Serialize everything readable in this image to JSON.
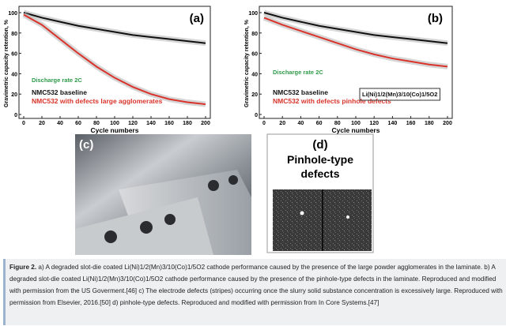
{
  "chart_data": [
    {
      "type": "line",
      "panel_label": "(a)",
      "y_label": "Gravimetric capacity retention, %",
      "x_label": "Cycle numbers",
      "x": [
        0,
        20,
        40,
        60,
        80,
        100,
        120,
        140,
        160,
        180,
        200
      ],
      "series": [
        {
          "name": "NMC532 baseline",
          "color": "#111111",
          "values": [
            100,
            95,
            91,
            87,
            84,
            81,
            78,
            76,
            74,
            72,
            70
          ]
        },
        {
          "name": "NMC532 with defects large agglomerates",
          "color": "#d9342b",
          "values": [
            98,
            88,
            74,
            60,
            47,
            36,
            27,
            20,
            15,
            12,
            10
          ]
        }
      ],
      "annotations": [
        {
          "text": "Discharge rate 2C",
          "color": "#2e9a4a"
        }
      ],
      "xlim": [
        0,
        200
      ],
      "ylim": [
        0,
        100
      ],
      "xticks": [
        0,
        20,
        40,
        60,
        80,
        100,
        120,
        140,
        160,
        180,
        200
      ],
      "yticks": [
        0,
        20,
        40,
        60,
        80,
        100
      ]
    },
    {
      "type": "line",
      "panel_label": "(b)",
      "y_label": "Gravimetric capacity retention, %",
      "x_label": "Cycle numbers",
      "x": [
        0,
        20,
        40,
        60,
        80,
        100,
        120,
        140,
        160,
        180,
        200
      ],
      "series": [
        {
          "name": "NMC532 baseline",
          "color": "#111111",
          "values": [
            100,
            95,
            91,
            87,
            84,
            81,
            78,
            76,
            74,
            72,
            70
          ]
        },
        {
          "name": "NMC532 with defects pinhole defects",
          "color": "#d9342b",
          "values": [
            95,
            88,
            82,
            76,
            70,
            64,
            59,
            55,
            52,
            49,
            47
          ]
        }
      ],
      "annotations": [
        {
          "text": "Discharge rate 2C",
          "color": "#2e9a4a"
        },
        {
          "text": "Li(Ni)1/2(Mn)3/10(Co)1/5O2",
          "color": "#111111"
        }
      ],
      "xlim": [
        0,
        200
      ],
      "ylim": [
        0,
        100
      ],
      "xticks": [
        0,
        20,
        40,
        60,
        80,
        100,
        120,
        140,
        160,
        180,
        200
      ],
      "yticks": [
        0,
        20,
        40,
        60,
        80,
        100
      ]
    }
  ],
  "panels": {
    "c": "(c)",
    "d": "(d)",
    "d_title": "Pinhole-type defects"
  },
  "caption": {
    "label": "Figure 2.",
    "text": "a) A degraded slot-die coated Li(Ni)1/2(Mn)3/10(Co)1/5O2 cathode performance caused by the presence of the large powder agglomerates in the laminate. b) A degraded slot-die coated Li(Ni)1/2(Mn)3/10(Co)1/5O2 cathode performance caused by the presence of the pinhole-type defects in the laminate. Reproduced and modified with permission from the US Goverment.[46] c) The electrode defects (stripes) occurring once the slurry solid substance concentration is excessively large. Reproduced with permission from Elsevier, 2016.[50] d) pinhole-type defects. Reproduced and modified with permission from In Core Systems.[47]"
  }
}
